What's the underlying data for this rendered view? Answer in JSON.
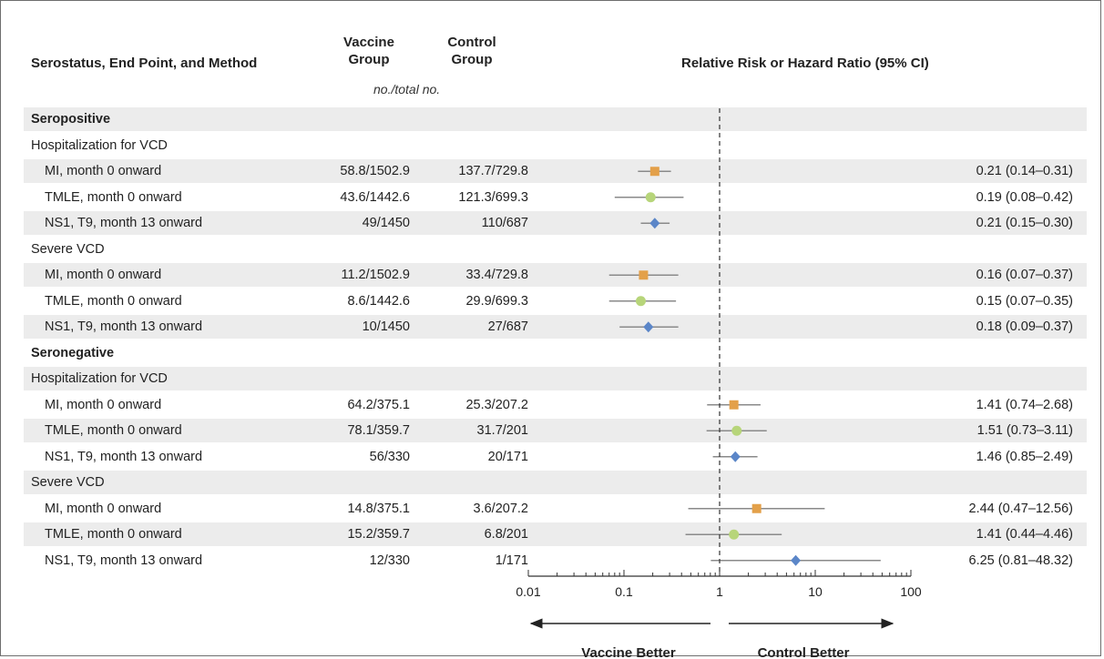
{
  "header": {
    "col1": "Serostatus, End Point, and Method",
    "col2_line1": "Vaccine",
    "col2_line2": "Group",
    "col3_line1": "Control",
    "col3_line2": "Group",
    "col4": "Relative Risk or Hazard Ratio (95% CI)",
    "units_note": "no./total no."
  },
  "colors": {
    "MI": "#e3a04a",
    "TMLE": "#b7d57a",
    "NS1": "#5b86c8",
    "stripe": "#ececec",
    "ci_line": "#8a8a8a"
  },
  "chart_data": {
    "type": "forest",
    "x_scale": "log",
    "xlim": [
      0.01,
      100
    ],
    "x_ticks": [
      "0.01",
      "0.1",
      "1",
      "10",
      "100"
    ],
    "reference_line": 1,
    "left_label": "Vaccine Better",
    "right_label": "Control Better",
    "rows": [
      {
        "kind": "group",
        "label": "Seropositive"
      },
      {
        "kind": "subgroup",
        "label": "Hospitalization for VCD"
      },
      {
        "kind": "data",
        "label": "MI, month 0 onward",
        "vaccine": "58.8/1502.9",
        "control": "137.7/729.8",
        "est": 0.21,
        "lo": 0.14,
        "hi": 0.31,
        "ci_text": "0.21 (0.14–0.31)",
        "method": "MI"
      },
      {
        "kind": "data",
        "label": "TMLE, month 0 onward",
        "vaccine": "43.6/1442.6",
        "control": "121.3/699.3",
        "est": 0.19,
        "lo": 0.08,
        "hi": 0.42,
        "ci_text": "0.19 (0.08–0.42)",
        "method": "TMLE"
      },
      {
        "kind": "data",
        "label": "NS1, T9, month 13 onward",
        "vaccine": "49/1450",
        "control": "110/687",
        "est": 0.21,
        "lo": 0.15,
        "hi": 0.3,
        "ci_text": "0.21 (0.15–0.30)",
        "method": "NS1"
      },
      {
        "kind": "subgroup",
        "label": "Severe VCD"
      },
      {
        "kind": "data",
        "label": "MI, month 0 onward",
        "vaccine": "11.2/1502.9",
        "control": "33.4/729.8",
        "est": 0.16,
        "lo": 0.07,
        "hi": 0.37,
        "ci_text": "0.16 (0.07–0.37)",
        "method": "MI"
      },
      {
        "kind": "data",
        "label": "TMLE, month 0 onward",
        "vaccine": "8.6/1442.6",
        "control": "29.9/699.3",
        "est": 0.15,
        "lo": 0.07,
        "hi": 0.35,
        "ci_text": "0.15 (0.07–0.35)",
        "method": "TMLE"
      },
      {
        "kind": "data",
        "label": "NS1, T9, month 13 onward",
        "vaccine": "10/1450",
        "control": "27/687",
        "est": 0.18,
        "lo": 0.09,
        "hi": 0.37,
        "ci_text": "0.18 (0.09–0.37)",
        "method": "NS1"
      },
      {
        "kind": "group",
        "label": "Seronegative"
      },
      {
        "kind": "subgroup",
        "label": "Hospitalization for VCD"
      },
      {
        "kind": "data",
        "label": "MI, month 0 onward",
        "vaccine": "64.2/375.1",
        "control": "25.3/207.2",
        "est": 1.41,
        "lo": 0.74,
        "hi": 2.68,
        "ci_text": "1.41 (0.74–2.68)",
        "method": "MI"
      },
      {
        "kind": "data",
        "label": "TMLE, month 0 onward",
        "vaccine": "78.1/359.7",
        "control": "31.7/201",
        "est": 1.51,
        "lo": 0.73,
        "hi": 3.11,
        "ci_text": "1.51 (0.73–3.11)",
        "method": "TMLE"
      },
      {
        "kind": "data",
        "label": "NS1, T9, month 13 onward",
        "vaccine": "56/330",
        "control": "20/171",
        "est": 1.46,
        "lo": 0.85,
        "hi": 2.49,
        "ci_text": "1.46 (0.85–2.49)",
        "method": "NS1"
      },
      {
        "kind": "subgroup",
        "label": "Severe VCD"
      },
      {
        "kind": "data",
        "label": "MI, month 0 onward",
        "vaccine": "14.8/375.1",
        "control": "3.6/207.2",
        "est": 2.44,
        "lo": 0.47,
        "hi": 12.56,
        "ci_text": "2.44 (0.47–12.56)",
        "method": "MI"
      },
      {
        "kind": "data",
        "label": "TMLE, month 0 onward",
        "vaccine": "15.2/359.7",
        "control": "6.8/201",
        "est": 1.41,
        "lo": 0.44,
        "hi": 4.46,
        "ci_text": "1.41 (0.44–4.46)",
        "method": "TMLE"
      },
      {
        "kind": "data",
        "label": "NS1, T9, month 13 onward",
        "vaccine": "12/330",
        "control": "1/171",
        "est": 6.25,
        "lo": 0.81,
        "hi": 48.32,
        "ci_text": "6.25 (0.81–48.32)",
        "method": "NS1"
      }
    ]
  }
}
